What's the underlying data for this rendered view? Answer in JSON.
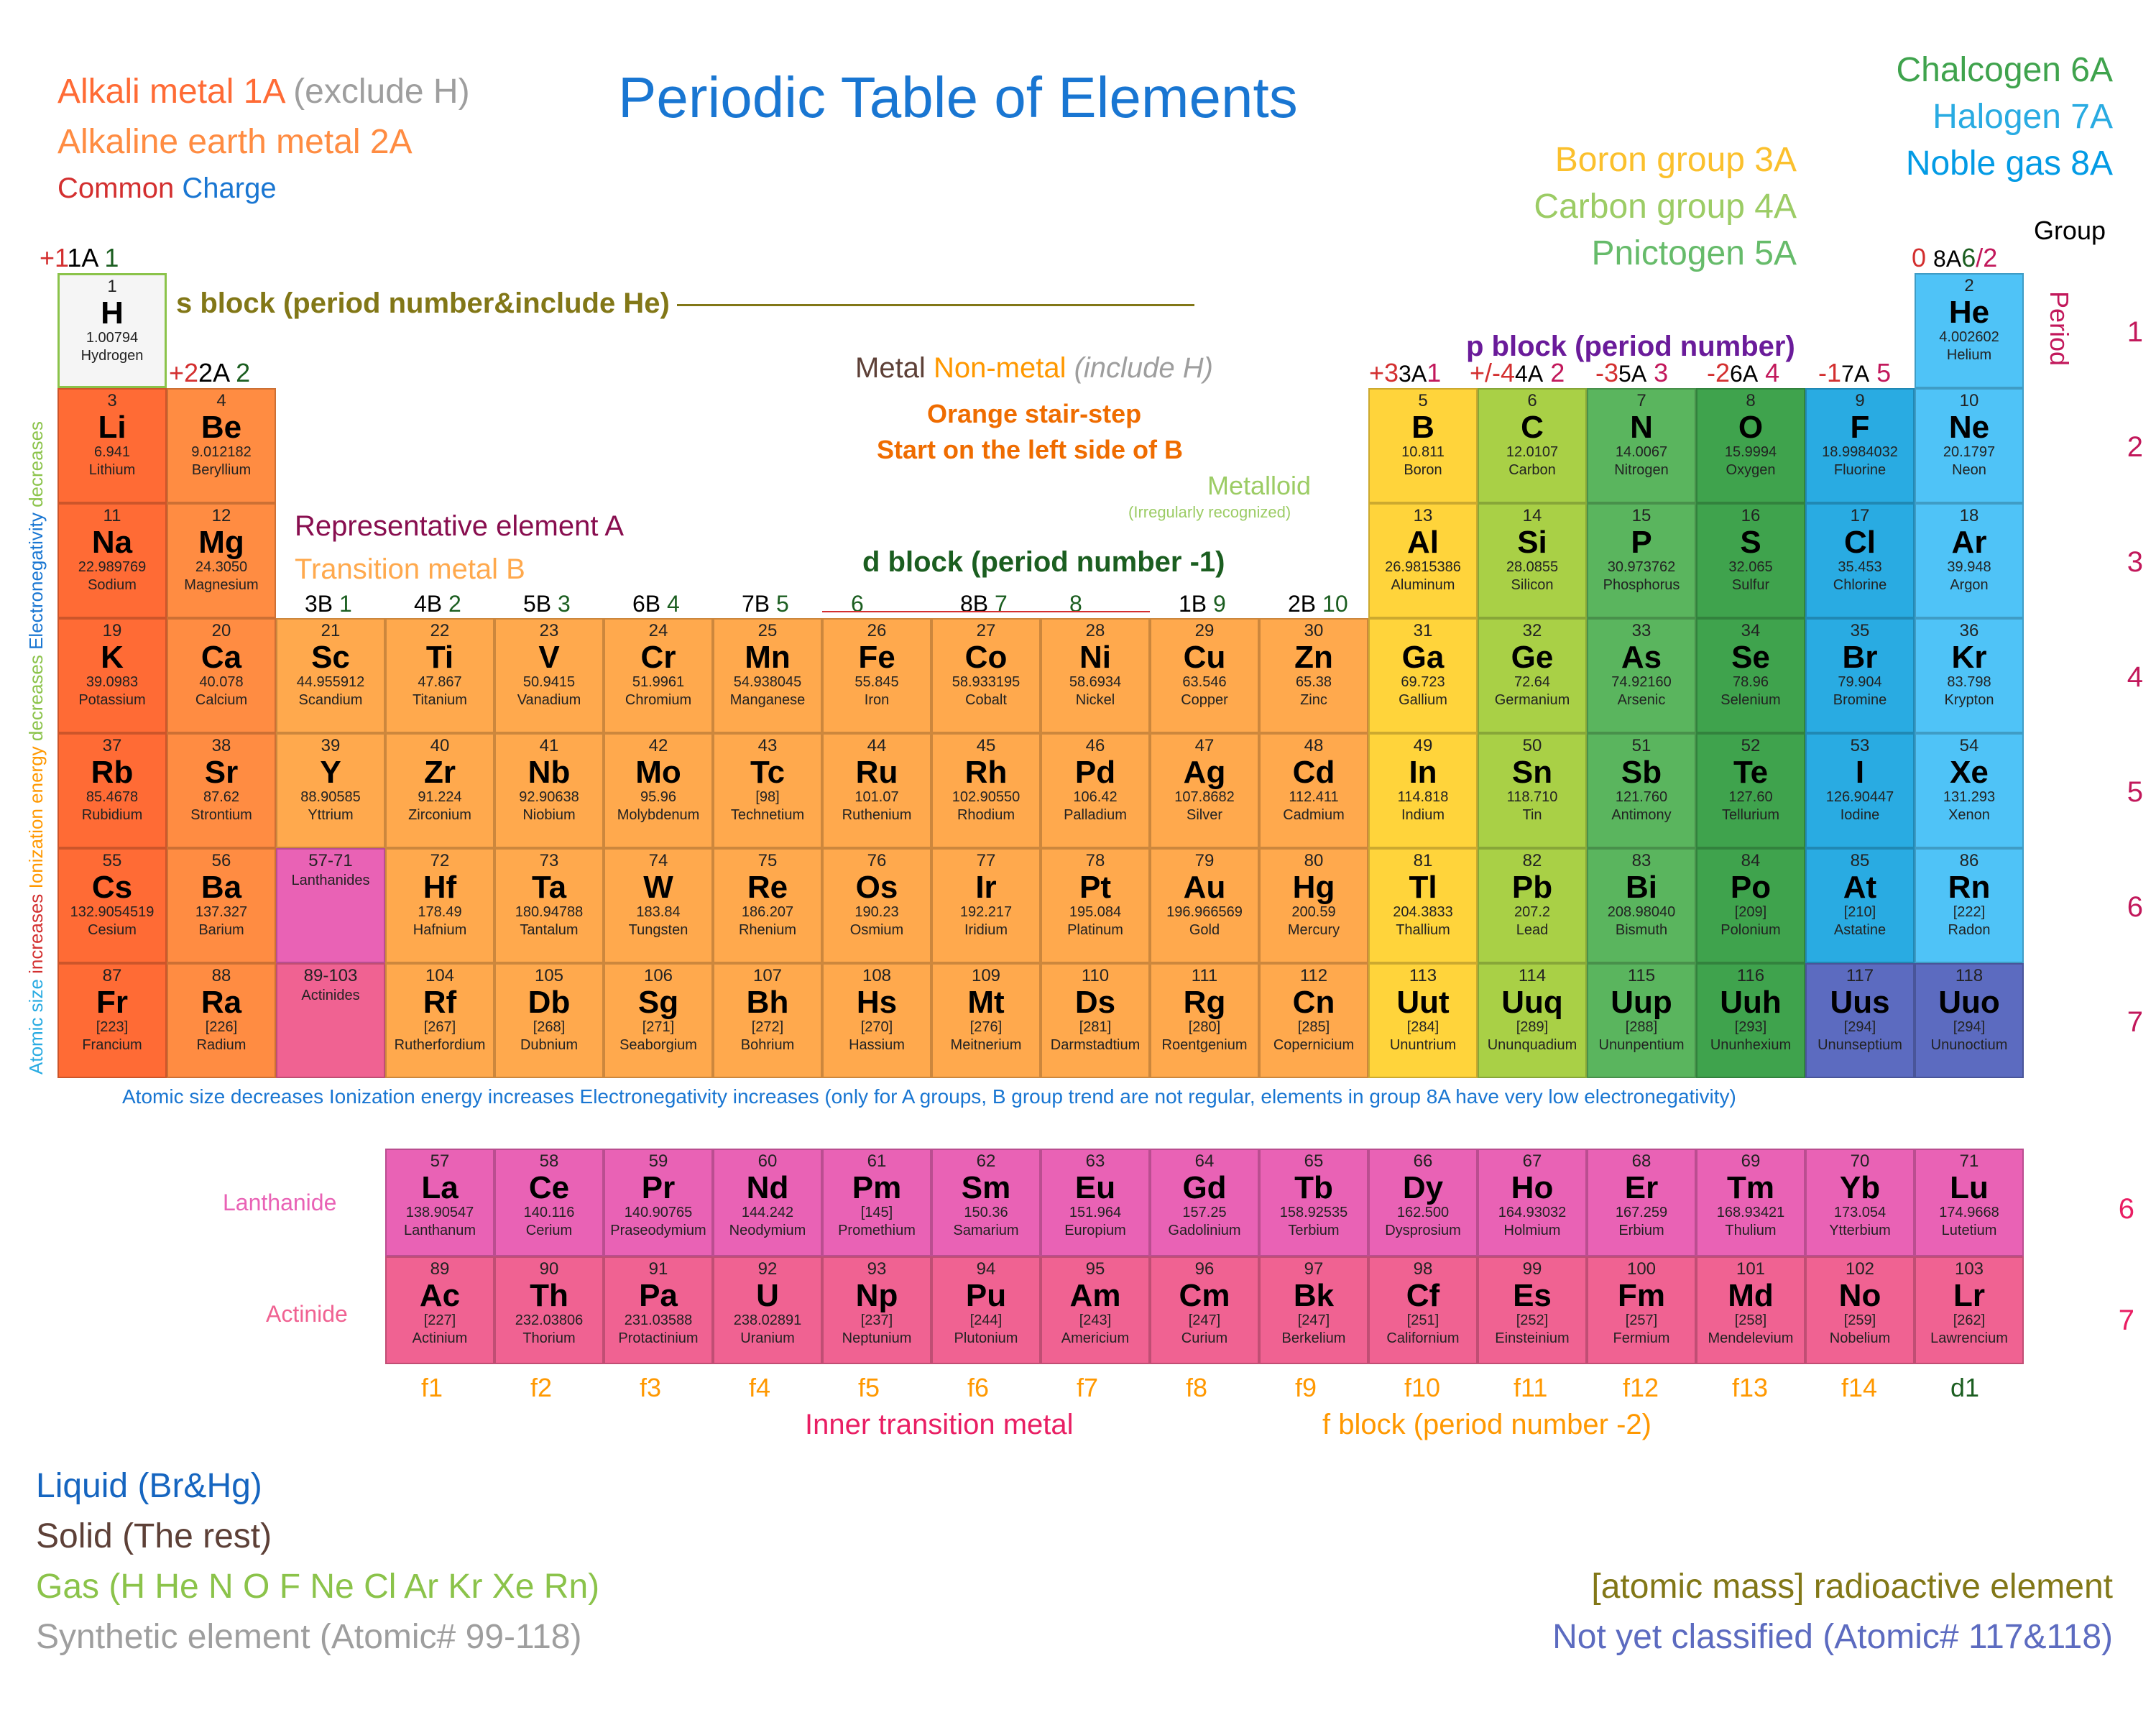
{
  "title": "Periodic Table of Elements",
  "legends": {
    "alkali": "Alkali metal 1A",
    "alkali_excl": "(exclude H)",
    "aearth": "Alkaline earth metal 2A",
    "common": "Common",
    "charge": "Charge",
    "chalc": "Chalcogen 6A",
    "halo": "Halogen 7A",
    "noble": "Noble gas 8A",
    "boron": "Boron group 3A",
    "carbon": "Carbon group 4A",
    "pnic": "Pnictogen 5A",
    "sblock": "s block (period number&include He)",
    "pblock": "p block (period number)",
    "dblock": "d block (period number -1)",
    "fblock": "f block (period number -2)",
    "rep": "Representative element A",
    "tm": "Transition metal B",
    "metal": "Metal",
    "nonmetal": "Non-metal",
    "incH": "(include H)",
    "stair1": "Orange stair-step",
    "stair2": "Start on the left side of B",
    "metalloid": "Metalloid",
    "irreg": "(Irregularly recognized)",
    "group": "Group",
    "period": "Period",
    "lanth": "Lanthanide",
    "act": "Actinide",
    "itm": "Inner transition metal",
    "liquid": "Liquid (Br&Hg)",
    "solid": "Solid (The rest)",
    "gas": "Gas (H He N O F Ne Cl Ar Kr Xe Rn)",
    "synth": "Synthetic element (Atomic# 99-118)",
    "radio": "[atomic mass] radioactive element",
    "notcl": "Not yet classified (Atomic# 117&118)",
    "trend": "Atomic size decreases Ionization energy increases Electronegativity increases (only for A groups, B group trend are not regular, elements in group 8A have very low electronegativity)"
  },
  "colors": {
    "alkali": "#ff6b35",
    "aearth": "#ff8c42",
    "chalc": "#3fa34d",
    "halo": "#29abe2",
    "noble": "#4fc3f7",
    "boron": "#ffd43b",
    "carbon": "#a9d046",
    "pnic": "#5ab55e",
    "liquid": "#1565c0",
    "solid": "#5d4037",
    "gas": "#8bc34a",
    "synth": "#9e9e9e",
    "radio": "#827717",
    "notcl": "#5c6bc0",
    "lanth": "#e962b5",
    "act": "#f06292",
    "title": "#1976d2",
    "rep": "#880e4f",
    "tm": "#ffa94d",
    "dblock": "#1b5e20",
    "sblock": "#827717",
    "metal": "#5d4037",
    "nonmetal": "#ff9800",
    "metalloid": "#9ccc65"
  },
  "group_headers": {
    "1A": "1A",
    "2A": "2A",
    "3A": "3A",
    "4A": "4A",
    "5A": "5A",
    "6A": "6A",
    "7A": "7A",
    "8A": "8A",
    "3B": "3B",
    "4B": "4B",
    "5B": "5B",
    "6B": "6B",
    "7B": "7B",
    "8B": "8B",
    "1B": "1B",
    "2B": "2B",
    "p1": "+1",
    "p2": "+2",
    "p3": "+3",
    "pm4": "+/-4",
    "m3": "-3",
    "m2": "-2",
    "m1": "-1",
    "zero": "0"
  },
  "periods": [
    "1",
    "2",
    "3",
    "4",
    "5",
    "6",
    "7"
  ],
  "fcols": [
    "f1",
    "f2",
    "f3",
    "f4",
    "f5",
    "f6",
    "f7",
    "f8",
    "f9",
    "f10",
    "f11",
    "f12",
    "f13",
    "f14",
    "d1"
  ],
  "elements": [
    {
      "n": 1,
      "s": "H",
      "m": "1.00794",
      "nm": "Hydrogen",
      "r": 0,
      "c": 0,
      "cls": "bg-h"
    },
    {
      "n": 2,
      "s": "He",
      "m": "4.002602",
      "nm": "Helium",
      "r": 0,
      "c": 17,
      "cls": "bg-noble"
    },
    {
      "n": 3,
      "s": "Li",
      "m": "6.941",
      "nm": "Lithium",
      "r": 1,
      "c": 0,
      "cls": "bg-alkali"
    },
    {
      "n": 4,
      "s": "Be",
      "m": "9.012182",
      "nm": "Beryllium",
      "r": 1,
      "c": 1,
      "cls": "bg-aearth"
    },
    {
      "n": 5,
      "s": "B",
      "m": "10.811",
      "nm": "Boron",
      "r": 1,
      "c": 12,
      "cls": "bg-poor"
    },
    {
      "n": 6,
      "s": "C",
      "m": "12.0107",
      "nm": "Carbon",
      "r": 1,
      "c": 13,
      "cls": "bg-mloid"
    },
    {
      "n": 7,
      "s": "N",
      "m": "14.0067",
      "nm": "Nitrogen",
      "r": 1,
      "c": 14,
      "cls": "bg-nonm"
    },
    {
      "n": 8,
      "s": "O",
      "m": "15.9994",
      "nm": "Oxygen",
      "r": 1,
      "c": 15,
      "cls": "bg-chalc"
    },
    {
      "n": 9,
      "s": "F",
      "m": "18.9984032",
      "nm": "Fluorine",
      "r": 1,
      "c": 16,
      "cls": "bg-halo"
    },
    {
      "n": 10,
      "s": "Ne",
      "m": "20.1797",
      "nm": "Neon",
      "r": 1,
      "c": 17,
      "cls": "bg-noble"
    },
    {
      "n": 11,
      "s": "Na",
      "m": "22.989769",
      "nm": "Sodium",
      "r": 2,
      "c": 0,
      "cls": "bg-alkali"
    },
    {
      "n": 12,
      "s": "Mg",
      "m": "24.3050",
      "nm": "Magnesium",
      "r": 2,
      "c": 1,
      "cls": "bg-aearth"
    },
    {
      "n": 13,
      "s": "Al",
      "m": "26.9815386",
      "nm": "Aluminum",
      "r": 2,
      "c": 12,
      "cls": "bg-poor"
    },
    {
      "n": 14,
      "s": "Si",
      "m": "28.0855",
      "nm": "Silicon",
      "r": 2,
      "c": 13,
      "cls": "bg-mloid"
    },
    {
      "n": 15,
      "s": "P",
      "m": "30.973762",
      "nm": "Phosphorus",
      "r": 2,
      "c": 14,
      "cls": "bg-nonm"
    },
    {
      "n": 16,
      "s": "S",
      "m": "32.065",
      "nm": "Sulfur",
      "r": 2,
      "c": 15,
      "cls": "bg-chalc"
    },
    {
      "n": 17,
      "s": "Cl",
      "m": "35.453",
      "nm": "Chlorine",
      "r": 2,
      "c": 16,
      "cls": "bg-halo"
    },
    {
      "n": 18,
      "s": "Ar",
      "m": "39.948",
      "nm": "Argon",
      "r": 2,
      "c": 17,
      "cls": "bg-noble"
    },
    {
      "n": 19,
      "s": "K",
      "m": "39.0983",
      "nm": "Potassium",
      "r": 3,
      "c": 0,
      "cls": "bg-alkali"
    },
    {
      "n": 20,
      "s": "Ca",
      "m": "40.078",
      "nm": "Calcium",
      "r": 3,
      "c": 1,
      "cls": "bg-aearth"
    },
    {
      "n": 21,
      "s": "Sc",
      "m": "44.955912",
      "nm": "Scandium",
      "r": 3,
      "c": 2,
      "cls": "bg-trans"
    },
    {
      "n": 22,
      "s": "Ti",
      "m": "47.867",
      "nm": "Titanium",
      "r": 3,
      "c": 3,
      "cls": "bg-trans"
    },
    {
      "n": 23,
      "s": "V",
      "m": "50.9415",
      "nm": "Vanadium",
      "r": 3,
      "c": 4,
      "cls": "bg-trans"
    },
    {
      "n": 24,
      "s": "Cr",
      "m": "51.9961",
      "nm": "Chromium",
      "r": 3,
      "c": 5,
      "cls": "bg-trans"
    },
    {
      "n": 25,
      "s": "Mn",
      "m": "54.938045",
      "nm": "Manganese",
      "r": 3,
      "c": 6,
      "cls": "bg-trans"
    },
    {
      "n": 26,
      "s": "Fe",
      "m": "55.845",
      "nm": "Iron",
      "r": 3,
      "c": 7,
      "cls": "bg-trans"
    },
    {
      "n": 27,
      "s": "Co",
      "m": "58.933195",
      "nm": "Cobalt",
      "r": 3,
      "c": 8,
      "cls": "bg-trans"
    },
    {
      "n": 28,
      "s": "Ni",
      "m": "58.6934",
      "nm": "Nickel",
      "r": 3,
      "c": 9,
      "cls": "bg-trans"
    },
    {
      "n": 29,
      "s": "Cu",
      "m": "63.546",
      "nm": "Copper",
      "r": 3,
      "c": 10,
      "cls": "bg-trans"
    },
    {
      "n": 30,
      "s": "Zn",
      "m": "65.38",
      "nm": "Zinc",
      "r": 3,
      "c": 11,
      "cls": "bg-trans"
    },
    {
      "n": 31,
      "s": "Ga",
      "m": "69.723",
      "nm": "Gallium",
      "r": 3,
      "c": 12,
      "cls": "bg-poor"
    },
    {
      "n": 32,
      "s": "Ge",
      "m": "72.64",
      "nm": "Germanium",
      "r": 3,
      "c": 13,
      "cls": "bg-mloid"
    },
    {
      "n": 33,
      "s": "As",
      "m": "74.92160",
      "nm": "Arsenic",
      "r": 3,
      "c": 14,
      "cls": "bg-nonm"
    },
    {
      "n": 34,
      "s": "Se",
      "m": "78.96",
      "nm": "Selenium",
      "r": 3,
      "c": 15,
      "cls": "bg-chalc"
    },
    {
      "n": 35,
      "s": "Br",
      "m": "79.904",
      "nm": "Bromine",
      "r": 3,
      "c": 16,
      "cls": "bg-halo"
    },
    {
      "n": 36,
      "s": "Kr",
      "m": "83.798",
      "nm": "Krypton",
      "r": 3,
      "c": 17,
      "cls": "bg-noble"
    },
    {
      "n": 37,
      "s": "Rb",
      "m": "85.4678",
      "nm": "Rubidium",
      "r": 4,
      "c": 0,
      "cls": "bg-alkali"
    },
    {
      "n": 38,
      "s": "Sr",
      "m": "87.62",
      "nm": "Strontium",
      "r": 4,
      "c": 1,
      "cls": "bg-aearth"
    },
    {
      "n": 39,
      "s": "Y",
      "m": "88.90585",
      "nm": "Yttrium",
      "r": 4,
      "c": 2,
      "cls": "bg-trans"
    },
    {
      "n": 40,
      "s": "Zr",
      "m": "91.224",
      "nm": "Zirconium",
      "r": 4,
      "c": 3,
      "cls": "bg-trans"
    },
    {
      "n": 41,
      "s": "Nb",
      "m": "92.90638",
      "nm": "Niobium",
      "r": 4,
      "c": 4,
      "cls": "bg-trans"
    },
    {
      "n": 42,
      "s": "Mo",
      "m": "95.96",
      "nm": "Molybdenum",
      "r": 4,
      "c": 5,
      "cls": "bg-trans"
    },
    {
      "n": 43,
      "s": "Tc",
      "m": "[98]",
      "nm": "Technetium",
      "r": 4,
      "c": 6,
      "cls": "bg-trans"
    },
    {
      "n": 44,
      "s": "Ru",
      "m": "101.07",
      "nm": "Ruthenium",
      "r": 4,
      "c": 7,
      "cls": "bg-trans"
    },
    {
      "n": 45,
      "s": "Rh",
      "m": "102.90550",
      "nm": "Rhodium",
      "r": 4,
      "c": 8,
      "cls": "bg-trans"
    },
    {
      "n": 46,
      "s": "Pd",
      "m": "106.42",
      "nm": "Palladium",
      "r": 4,
      "c": 9,
      "cls": "bg-trans"
    },
    {
      "n": 47,
      "s": "Ag",
      "m": "107.8682",
      "nm": "Silver",
      "r": 4,
      "c": 10,
      "cls": "bg-trans"
    },
    {
      "n": 48,
      "s": "Cd",
      "m": "112.411",
      "nm": "Cadmium",
      "r": 4,
      "c": 11,
      "cls": "bg-trans"
    },
    {
      "n": 49,
      "s": "In",
      "m": "114.818",
      "nm": "Indium",
      "r": 4,
      "c": 12,
      "cls": "bg-poor"
    },
    {
      "n": 50,
      "s": "Sn",
      "m": "118.710",
      "nm": "Tin",
      "r": 4,
      "c": 13,
      "cls": "bg-mloid"
    },
    {
      "n": 51,
      "s": "Sb",
      "m": "121.760",
      "nm": "Antimony",
      "r": 4,
      "c": 14,
      "cls": "bg-nonm"
    },
    {
      "n": 52,
      "s": "Te",
      "m": "127.60",
      "nm": "Tellurium",
      "r": 4,
      "c": 15,
      "cls": "bg-chalc"
    },
    {
      "n": 53,
      "s": "I",
      "m": "126.90447",
      "nm": "Iodine",
      "r": 4,
      "c": 16,
      "cls": "bg-halo"
    },
    {
      "n": 54,
      "s": "Xe",
      "m": "131.293",
      "nm": "Xenon",
      "r": 4,
      "c": 17,
      "cls": "bg-noble"
    },
    {
      "n": 55,
      "s": "Cs",
      "m": "132.9054519",
      "nm": "Cesium",
      "r": 5,
      "c": 0,
      "cls": "bg-alkali"
    },
    {
      "n": 56,
      "s": "Ba",
      "m": "137.327",
      "nm": "Barium",
      "r": 5,
      "c": 1,
      "cls": "bg-aearth"
    },
    {
      "n": "57-71",
      "s": "",
      "m": "",
      "nm": "Lanthanides",
      "r": 5,
      "c": 2,
      "cls": "bg-lanth"
    },
    {
      "n": 72,
      "s": "Hf",
      "m": "178.49",
      "nm": "Hafnium",
      "r": 5,
      "c": 3,
      "cls": "bg-trans"
    },
    {
      "n": 73,
      "s": "Ta",
      "m": "180.94788",
      "nm": "Tantalum",
      "r": 5,
      "c": 4,
      "cls": "bg-trans"
    },
    {
      "n": 74,
      "s": "W",
      "m": "183.84",
      "nm": "Tungsten",
      "r": 5,
      "c": 5,
      "cls": "bg-trans"
    },
    {
      "n": 75,
      "s": "Re",
      "m": "186.207",
      "nm": "Rhenium",
      "r": 5,
      "c": 6,
      "cls": "bg-trans"
    },
    {
      "n": 76,
      "s": "Os",
      "m": "190.23",
      "nm": "Osmium",
      "r": 5,
      "c": 7,
      "cls": "bg-trans"
    },
    {
      "n": 77,
      "s": "Ir",
      "m": "192.217",
      "nm": "Iridium",
      "r": 5,
      "c": 8,
      "cls": "bg-trans"
    },
    {
      "n": 78,
      "s": "Pt",
      "m": "195.084",
      "nm": "Platinum",
      "r": 5,
      "c": 9,
      "cls": "bg-trans"
    },
    {
      "n": 79,
      "s": "Au",
      "m": "196.966569",
      "nm": "Gold",
      "r": 5,
      "c": 10,
      "cls": "bg-trans"
    },
    {
      "n": 80,
      "s": "Hg",
      "m": "200.59",
      "nm": "Mercury",
      "r": 5,
      "c": 11,
      "cls": "bg-trans"
    },
    {
      "n": 81,
      "s": "Tl",
      "m": "204.3833",
      "nm": "Thallium",
      "r": 5,
      "c": 12,
      "cls": "bg-poor"
    },
    {
      "n": 82,
      "s": "Pb",
      "m": "207.2",
      "nm": "Lead",
      "r": 5,
      "c": 13,
      "cls": "bg-mloid"
    },
    {
      "n": 83,
      "s": "Bi",
      "m": "208.98040",
      "nm": "Bismuth",
      "r": 5,
      "c": 14,
      "cls": "bg-nonm"
    },
    {
      "n": 84,
      "s": "Po",
      "m": "[209]",
      "nm": "Polonium",
      "r": 5,
      "c": 15,
      "cls": "bg-chalc"
    },
    {
      "n": 85,
      "s": "At",
      "m": "[210]",
      "nm": "Astatine",
      "r": 5,
      "c": 16,
      "cls": "bg-halo"
    },
    {
      "n": 86,
      "s": "Rn",
      "m": "[222]",
      "nm": "Radon",
      "r": 5,
      "c": 17,
      "cls": "bg-noble"
    },
    {
      "n": 87,
      "s": "Fr",
      "m": "[223]",
      "nm": "Francium",
      "r": 6,
      "c": 0,
      "cls": "bg-alkali"
    },
    {
      "n": 88,
      "s": "Ra",
      "m": "[226]",
      "nm": "Radium",
      "r": 6,
      "c": 1,
      "cls": "bg-aearth"
    },
    {
      "n": "89-103",
      "s": "",
      "m": "",
      "nm": "Actinides",
      "r": 6,
      "c": 2,
      "cls": "bg-act"
    },
    {
      "n": 104,
      "s": "Rf",
      "m": "[267]",
      "nm": "Rutherfordium",
      "r": 6,
      "c": 3,
      "cls": "bg-trans"
    },
    {
      "n": 105,
      "s": "Db",
      "m": "[268]",
      "nm": "Dubnium",
      "r": 6,
      "c": 4,
      "cls": "bg-trans"
    },
    {
      "n": 106,
      "s": "Sg",
      "m": "[271]",
      "nm": "Seaborgium",
      "r": 6,
      "c": 5,
      "cls": "bg-trans"
    },
    {
      "n": 107,
      "s": "Bh",
      "m": "[272]",
      "nm": "Bohrium",
      "r": 6,
      "c": 6,
      "cls": "bg-trans"
    },
    {
      "n": 108,
      "s": "Hs",
      "m": "[270]",
      "nm": "Hassium",
      "r": 6,
      "c": 7,
      "cls": "bg-trans"
    },
    {
      "n": 109,
      "s": "Mt",
      "m": "[276]",
      "nm": "Meitnerium",
      "r": 6,
      "c": 8,
      "cls": "bg-trans"
    },
    {
      "n": 110,
      "s": "Ds",
      "m": "[281]",
      "nm": "Darmstadtium",
      "r": 6,
      "c": 9,
      "cls": "bg-trans"
    },
    {
      "n": 111,
      "s": "Rg",
      "m": "[280]",
      "nm": "Roentgenium",
      "r": 6,
      "c": 10,
      "cls": "bg-trans"
    },
    {
      "n": 112,
      "s": "Cn",
      "m": "[285]",
      "nm": "Copernicium",
      "r": 6,
      "c": 11,
      "cls": "bg-trans"
    },
    {
      "n": 113,
      "s": "Uut",
      "m": "[284]",
      "nm": "Ununtrium",
      "r": 6,
      "c": 12,
      "cls": "bg-poor"
    },
    {
      "n": 114,
      "s": "Uuq",
      "m": "[289]",
      "nm": "Ununquadium",
      "r": 6,
      "c": 13,
      "cls": "bg-mloid"
    },
    {
      "n": 115,
      "s": "Uup",
      "m": "[288]",
      "nm": "Ununpentium",
      "r": 6,
      "c": 14,
      "cls": "bg-nonm"
    },
    {
      "n": 116,
      "s": "Uuh",
      "m": "[293]",
      "nm": "Ununhexium",
      "r": 6,
      "c": 15,
      "cls": "bg-chalc"
    },
    {
      "n": 117,
      "s": "Uus",
      "m": "[294]",
      "nm": "Ununseptium",
      "r": 6,
      "c": 16,
      "cls": "bg-unk"
    },
    {
      "n": 118,
      "s": "Uuo",
      "m": "[294]",
      "nm": "Ununoctium",
      "r": 6,
      "c": 17,
      "cls": "bg-unk"
    }
  ],
  "felements": [
    {
      "n": 57,
      "s": "La",
      "m": "138.90547",
      "nm": "Lanthanum",
      "r": 0,
      "c": 0,
      "cls": "bg-lanth"
    },
    {
      "n": 58,
      "s": "Ce",
      "m": "140.116",
      "nm": "Cerium",
      "r": 0,
      "c": 1,
      "cls": "bg-lanth"
    },
    {
      "n": 59,
      "s": "Pr",
      "m": "140.90765",
      "nm": "Praseodymium",
      "r": 0,
      "c": 2,
      "cls": "bg-lanth"
    },
    {
      "n": 60,
      "s": "Nd",
      "m": "144.242",
      "nm": "Neodymium",
      "r": 0,
      "c": 3,
      "cls": "bg-lanth"
    },
    {
      "n": 61,
      "s": "Pm",
      "m": "[145]",
      "nm": "Promethium",
      "r": 0,
      "c": 4,
      "cls": "bg-lanth"
    },
    {
      "n": 62,
      "s": "Sm",
      "m": "150.36",
      "nm": "Samarium",
      "r": 0,
      "c": 5,
      "cls": "bg-lanth"
    },
    {
      "n": 63,
      "s": "Eu",
      "m": "151.964",
      "nm": "Europium",
      "r": 0,
      "c": 6,
      "cls": "bg-lanth"
    },
    {
      "n": 64,
      "s": "Gd",
      "m": "157.25",
      "nm": "Gadolinium",
      "r": 0,
      "c": 7,
      "cls": "bg-lanth"
    },
    {
      "n": 65,
      "s": "Tb",
      "m": "158.92535",
      "nm": "Terbium",
      "r": 0,
      "c": 8,
      "cls": "bg-lanth"
    },
    {
      "n": 66,
      "s": "Dy",
      "m": "162.500",
      "nm": "Dysprosium",
      "r": 0,
      "c": 9,
      "cls": "bg-lanth"
    },
    {
      "n": 67,
      "s": "Ho",
      "m": "164.93032",
      "nm": "Holmium",
      "r": 0,
      "c": 10,
      "cls": "bg-lanth"
    },
    {
      "n": 68,
      "s": "Er",
      "m": "167.259",
      "nm": "Erbium",
      "r": 0,
      "c": 11,
      "cls": "bg-lanth"
    },
    {
      "n": 69,
      "s": "Tm",
      "m": "168.93421",
      "nm": "Thulium",
      "r": 0,
      "c": 12,
      "cls": "bg-lanth"
    },
    {
      "n": 70,
      "s": "Yb",
      "m": "173.054",
      "nm": "Ytterbium",
      "r": 0,
      "c": 13,
      "cls": "bg-lanth"
    },
    {
      "n": 71,
      "s": "Lu",
      "m": "174.9668",
      "nm": "Lutetium",
      "r": 0,
      "c": 14,
      "cls": "bg-lanth"
    },
    {
      "n": 89,
      "s": "Ac",
      "m": "[227]",
      "nm": "Actinium",
      "r": 1,
      "c": 0,
      "cls": "bg-act"
    },
    {
      "n": 90,
      "s": "Th",
      "m": "232.03806",
      "nm": "Thorium",
      "r": 1,
      "c": 1,
      "cls": "bg-act"
    },
    {
      "n": 91,
      "s": "Pa",
      "m": "231.03588",
      "nm": "Protactinium",
      "r": 1,
      "c": 2,
      "cls": "bg-act"
    },
    {
      "n": 92,
      "s": "U",
      "m": "238.02891",
      "nm": "Uranium",
      "r": 1,
      "c": 3,
      "cls": "bg-act"
    },
    {
      "n": 93,
      "s": "Np",
      "m": "[237]",
      "nm": "Neptunium",
      "r": 1,
      "c": 4,
      "cls": "bg-act"
    },
    {
      "n": 94,
      "s": "Pu",
      "m": "[244]",
      "nm": "Plutonium",
      "r": 1,
      "c": 5,
      "cls": "bg-act"
    },
    {
      "n": 95,
      "s": "Am",
      "m": "[243]",
      "nm": "Americium",
      "r": 1,
      "c": 6,
      "cls": "bg-act"
    },
    {
      "n": 96,
      "s": "Cm",
      "m": "[247]",
      "nm": "Curium",
      "r": 1,
      "c": 7,
      "cls": "bg-act"
    },
    {
      "n": 97,
      "s": "Bk",
      "m": "[247]",
      "nm": "Berkelium",
      "r": 1,
      "c": 8,
      "cls": "bg-act"
    },
    {
      "n": 98,
      "s": "Cf",
      "m": "[251]",
      "nm": "Californium",
      "r": 1,
      "c": 9,
      "cls": "bg-act"
    },
    {
      "n": 99,
      "s": "Es",
      "m": "[252]",
      "nm": "Einsteinium",
      "r": 1,
      "c": 10,
      "cls": "bg-act"
    },
    {
      "n": 100,
      "s": "Fm",
      "m": "[257]",
      "nm": "Fermium",
      "r": 1,
      "c": 11,
      "cls": "bg-act"
    },
    {
      "n": 101,
      "s": "Md",
      "m": "[258]",
      "nm": "Mendelevium",
      "r": 1,
      "c": 12,
      "cls": "bg-act"
    },
    {
      "n": 102,
      "s": "No",
      "m": "[259]",
      "nm": "Nobelium",
      "r": 1,
      "c": 13,
      "cls": "bg-act"
    },
    {
      "n": 103,
      "s": "Lr",
      "m": "[262]",
      "nm": "Lawrencium",
      "r": 1,
      "c": 14,
      "cls": "bg-act"
    }
  ],
  "layout": {
    "cellW": 152,
    "cellH": 160,
    "fCellH": 150
  }
}
